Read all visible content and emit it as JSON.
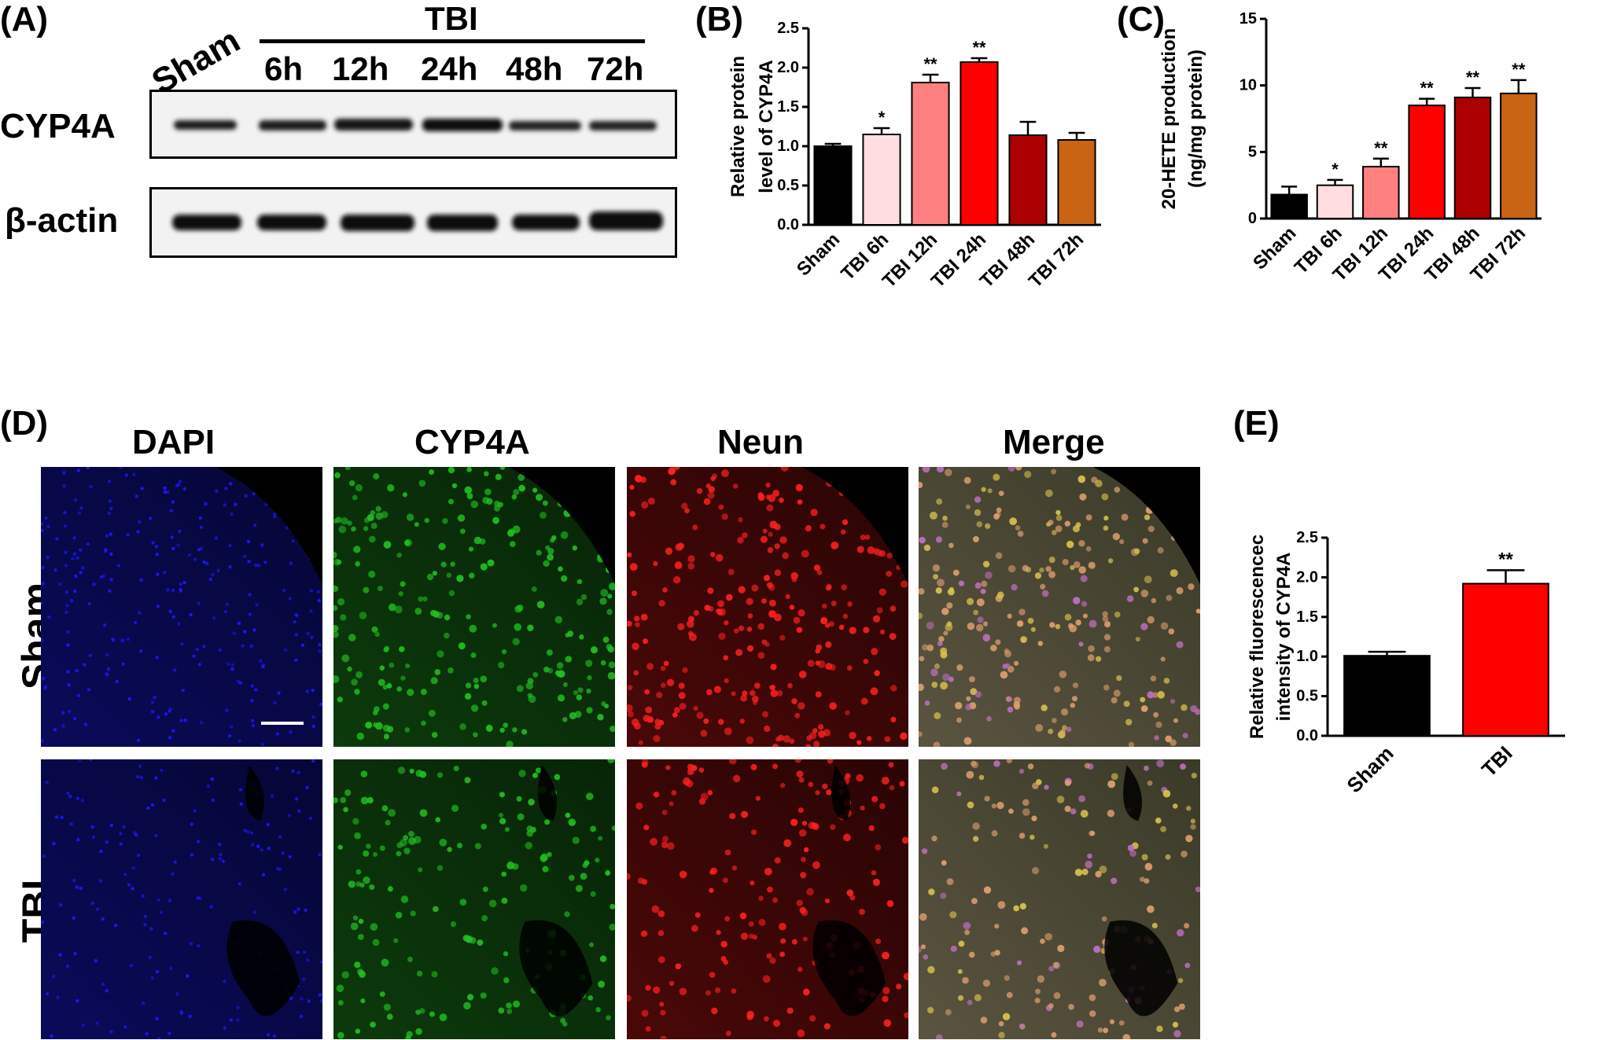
{
  "panels": {
    "a": {
      "label": "(A)",
      "group_label": "TBI",
      "lanes": [
        "Sham",
        "6h",
        "12h",
        "24h",
        "48h",
        "72h"
      ],
      "rows": [
        "CYP4A",
        "β-actin"
      ]
    },
    "b": {
      "label": "(B)"
    },
    "c": {
      "label": "(C)"
    },
    "d": {
      "label": "(D)",
      "columns": [
        "DAPI",
        "CYP4A",
        "Neun",
        "Merge"
      ],
      "rows": [
        "Sham",
        "TBI"
      ],
      "channel_colors": {
        "DAPI": "#1a1aff",
        "CYP4A": "#22c022",
        "Neun": "#ff2020",
        "Merge": "#c8a040"
      }
    },
    "e": {
      "label": "(E)"
    }
  },
  "chart_data": [
    {
      "type": "bar",
      "panel": "B",
      "categories": [
        "Sham",
        "TBI 6h",
        "TBI 12h",
        "TBI 24h",
        "TBI 48h",
        "TBI 72h"
      ],
      "values": [
        1.0,
        1.15,
        1.81,
        2.07,
        1.14,
        1.08
      ],
      "errors": [
        0.03,
        0.08,
        0.1,
        0.05,
        0.17,
        0.09
      ],
      "significance": [
        "",
        "*",
        "**",
        "**",
        "",
        ""
      ],
      "colors": [
        "#000000",
        "#ffdde0",
        "#ff8080",
        "#ff0000",
        "#aa0000",
        "#c86414"
      ],
      "ylabel_lines": [
        "Relative protein",
        "level of CYP4A"
      ],
      "ylim": [
        0,
        2.5
      ],
      "yticks": [
        "0.0",
        "0.5",
        "1.0",
        "1.5",
        "2.0",
        "2.5"
      ]
    },
    {
      "type": "bar",
      "panel": "C",
      "categories": [
        "Sham",
        "TBI 6h",
        "TBI 12h",
        "TBI 24h",
        "TBI 48h",
        "TBI 72h"
      ],
      "values": [
        1.8,
        2.5,
        3.9,
        8.5,
        9.1,
        9.4
      ],
      "errors": [
        0.6,
        0.4,
        0.6,
        0.5,
        0.7,
        1.0
      ],
      "significance": [
        "",
        "*",
        "**",
        "**",
        "**",
        "**"
      ],
      "colors": [
        "#000000",
        "#ffdde0",
        "#ff8080",
        "#ff0000",
        "#aa0000",
        "#c86414"
      ],
      "ylabel_lines": [
        "20-HETE production",
        "(ng/mg protein)"
      ],
      "ylim": [
        0,
        15
      ],
      "yticks": [
        "0",
        "5",
        "10",
        "15"
      ]
    },
    {
      "type": "bar",
      "panel": "E",
      "categories": [
        "Sham",
        "TBI"
      ],
      "values": [
        1.01,
        1.92
      ],
      "errors": [
        0.05,
        0.17
      ],
      "significance": [
        "",
        "**"
      ],
      "colors": [
        "#000000",
        "#ff0000"
      ],
      "ylabel_lines": [
        "Relative fluorescencec",
        "intensity of CYP4A"
      ],
      "ylim": [
        0,
        2.5
      ],
      "yticks": [
        "0.0",
        "0.5",
        "1.0",
        "1.5",
        "2.0",
        "2.5"
      ]
    }
  ]
}
